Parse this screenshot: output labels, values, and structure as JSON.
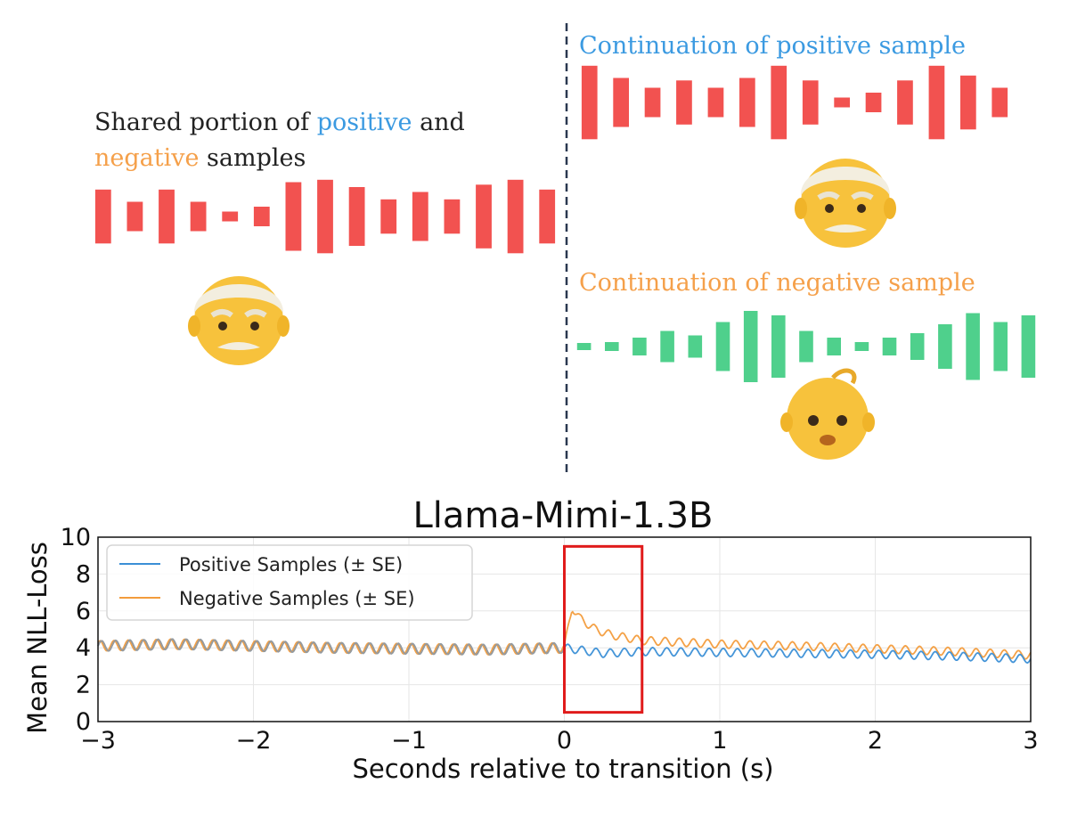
{
  "illustration": {
    "shared_caption": {
      "part1": "Shared portion of ",
      "positive_word": "positive",
      "part2": " and",
      "negative_word": "negative",
      "part3": " samples"
    },
    "positive_caption": "Continuation of positive sample",
    "negative_caption": "Continuation of negative sample",
    "speakers": {
      "shared": "old-man-emoji",
      "positive": "old-man-emoji",
      "negative": "baby-emoji"
    },
    "waveform_bars": {
      "shared": [
        0.55,
        0.3,
        0.55,
        0.3,
        0.1,
        0.2,
        0.7,
        0.75,
        0.6,
        0.35,
        0.5,
        0.35,
        0.65,
        0.75,
        0.55
      ],
      "positive_continuation": [
        0.75,
        0.5,
        0.3,
        0.45,
        0.3,
        0.5,
        0.75,
        0.45,
        0.1,
        0.2,
        0.45,
        0.75,
        0.55,
        0.3
      ],
      "negative_continuation": [
        0.05,
        0.1,
        0.2,
        0.35,
        0.25,
        0.55,
        0.8,
        0.7,
        0.35,
        0.2,
        0.1,
        0.2,
        0.3,
        0.5,
        0.75,
        0.55,
        0.7
      ]
    },
    "colors": {
      "positive": "#3b9ae1",
      "negative": "#f5a04a",
      "old_speaker_bars": "#f25250",
      "child_speaker_bars": "#4fd08c",
      "divider": "#2a3850"
    }
  },
  "chart_data": {
    "type": "line",
    "title": "Llama-Mimi-1.3B",
    "xlabel": "Seconds relative to transition (s)",
    "ylabel": "Mean NLL-Loss",
    "xlim": [
      -3,
      3
    ],
    "ylim": [
      0,
      10
    ],
    "xticks": [
      "−3",
      "−2",
      "−1",
      "0",
      "1",
      "2",
      "3"
    ],
    "yticks": [
      "0",
      "2",
      "4",
      "6",
      "8",
      "10"
    ],
    "grid": true,
    "legend_position": "upper-left",
    "series": [
      {
        "name": "Positive Samples (± SE)",
        "color": "#3b8fd6",
        "x": [
          -3,
          -2.5,
          -2,
          -1.5,
          -1,
          -0.5,
          0,
          0.25,
          0.5,
          1,
          1.5,
          2,
          2.5,
          3
        ],
        "y": [
          4.1,
          4.2,
          4.1,
          4.0,
          3.95,
          3.9,
          4.0,
          3.7,
          3.8,
          3.75,
          3.7,
          3.65,
          3.55,
          3.4
        ]
      },
      {
        "name": "Negative Samples (± SE)",
        "color": "#f39c3c",
        "x": [
          -3,
          -2.5,
          -2,
          -1.5,
          -1,
          -0.5,
          0,
          0.05,
          0.1,
          0.2,
          0.3,
          0.5,
          1,
          1.5,
          2,
          2.5,
          3
        ],
        "y": [
          4.1,
          4.2,
          4.1,
          4.0,
          3.95,
          3.9,
          4.0,
          6.2,
          5.6,
          5.0,
          4.7,
          4.4,
          4.2,
          4.1,
          3.95,
          3.8,
          3.6
        ]
      }
    ],
    "highlight_box": {
      "x": [
        0,
        0.5
      ],
      "y": [
        0.5,
        9.5
      ],
      "color": "#e01b1b"
    }
  }
}
